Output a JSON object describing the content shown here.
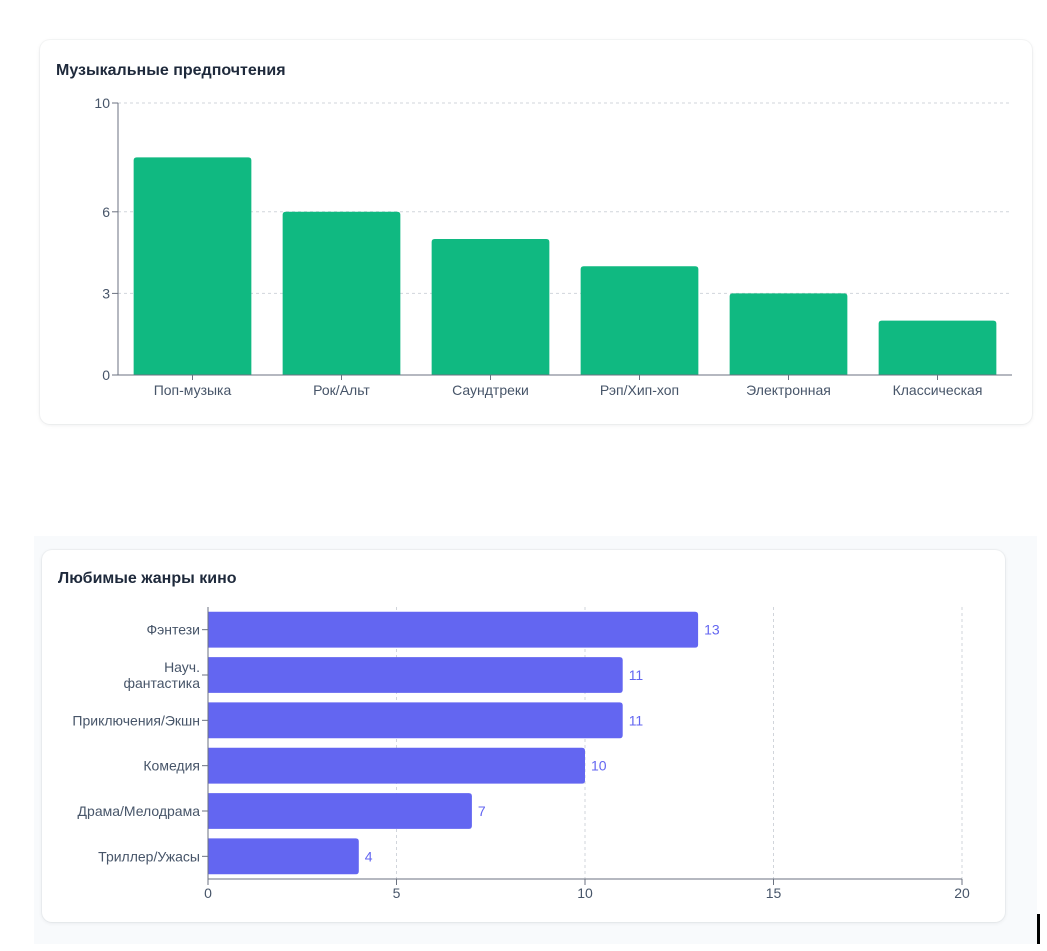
{
  "chart_data": [
    {
      "type": "bar",
      "orientation": "vertical",
      "title": "Музыкальные предпочтения",
      "categories": [
        "Поп-музыка",
        "Рок/Альт",
        "Саундтреки",
        "Рэп/Хип-хоп",
        "Электронная",
        "Классическая"
      ],
      "values": [
        8,
        6,
        5,
        4,
        3,
        2
      ],
      "ylim": [
        0,
        10
      ],
      "yticks": [
        "0",
        "3",
        "6",
        "10"
      ],
      "grid": true,
      "color": "#10b981"
    },
    {
      "type": "bar",
      "orientation": "horizontal",
      "title": "Любимые жанры кино",
      "categories": [
        "Фэнтези",
        "Науч. фантастика",
        "Приключения/Экшн",
        "Комедия",
        "Драма/Мелодрама",
        "Триллер/Ужасы"
      ],
      "values": [
        13,
        11,
        11,
        10,
        7,
        4
      ],
      "xlim": [
        0,
        20
      ],
      "xticks": [
        "0",
        "5",
        "10",
        "15",
        "20"
      ],
      "grid": true,
      "data_labels": true,
      "color": "#6366f1",
      "label_color": "#6366f1"
    }
  ]
}
